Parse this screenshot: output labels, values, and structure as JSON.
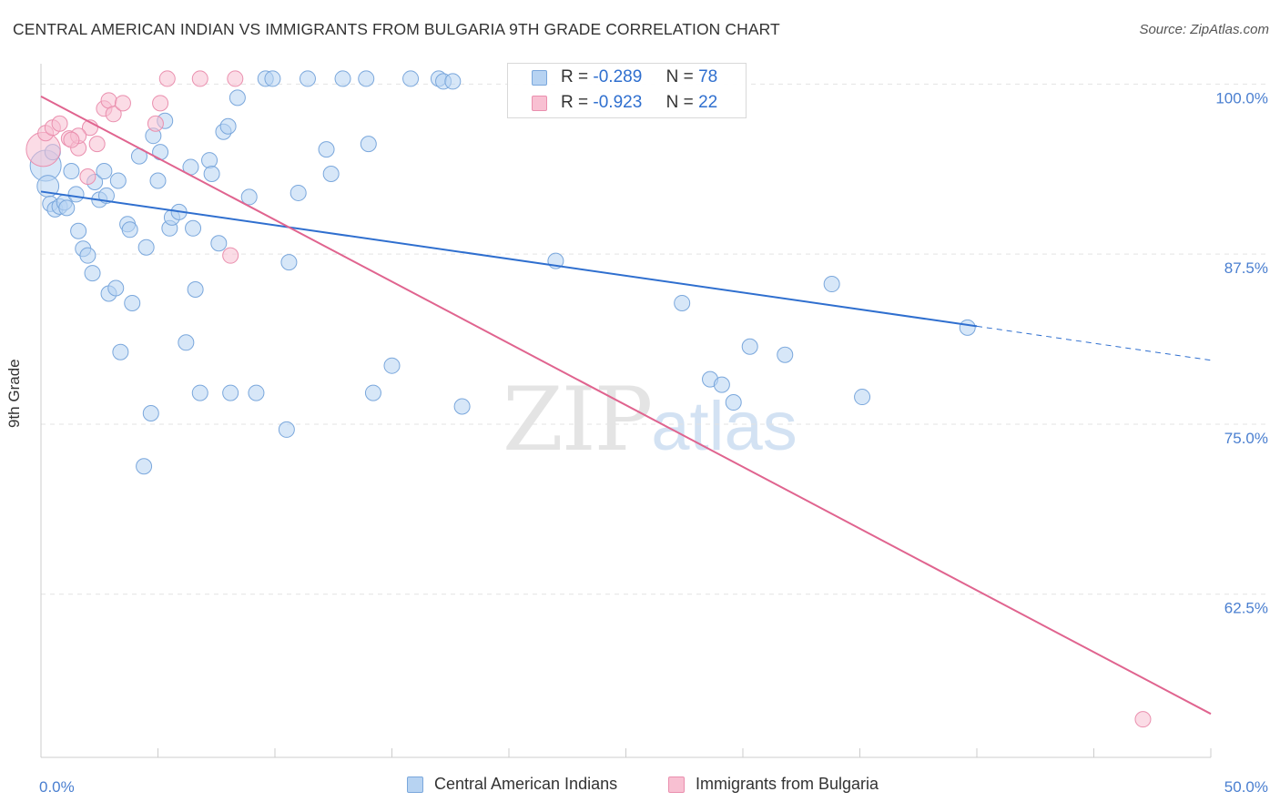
{
  "header": {
    "title": "CENTRAL AMERICAN INDIAN VS IMMIGRANTS FROM BULGARIA 9TH GRADE CORRELATION CHART",
    "source": "Source: ZipAtlas.com"
  },
  "watermark": {
    "zip": "ZIP",
    "atlas": "atlas"
  },
  "legend": {
    "series1": {
      "r_label": "R =",
      "r_value": "-0.289",
      "n_label": "N =",
      "n_value": "78"
    },
    "series2": {
      "r_label": "R =",
      "r_value": "-0.923",
      "n_label": "N =",
      "n_value": "22"
    }
  },
  "colors": {
    "blue_fill": "#b7d3f2",
    "blue_stroke": "#7aa7dc",
    "blue_line": "#2f6fcf",
    "pink_fill": "#f8c0d2",
    "pink_stroke": "#ea8fae",
    "pink_line": "#e0648f",
    "tick_text": "#4a7fd0",
    "grid": "#e3e3e3"
  },
  "chart_data": {
    "type": "scatter",
    "title": "CENTRAL AMERICAN INDIAN VS IMMIGRANTS FROM BULGARIA 9TH GRADE CORRELATION CHART",
    "xlabel": "",
    "ylabel": "9th Grade",
    "xlim": [
      0,
      50
    ],
    "ylim": [
      50.5,
      101.5
    ],
    "x_tick_labels": {
      "left": "0.0%",
      "right": "50.0%"
    },
    "x_minor_ticks": [
      5,
      10,
      15,
      20,
      25,
      30,
      35,
      40,
      45,
      50
    ],
    "y_ticks": [
      {
        "value": 100,
        "label": "100.0%"
      },
      {
        "value": 87.5,
        "label": "87.5%"
      },
      {
        "value": 75,
        "label": "75.0%"
      },
      {
        "value": 62.5,
        "label": "62.5%"
      }
    ],
    "grid": true,
    "series": [
      {
        "name": "Central American Indians",
        "color": "blue",
        "points": [
          [
            0.2,
            94.0,
            2
          ],
          [
            0.3,
            92.5,
            1.4
          ],
          [
            0.4,
            91.2,
            1
          ],
          [
            0.6,
            90.8,
            1
          ],
          [
            0.8,
            91.0,
            1
          ],
          [
            1.0,
            91.3,
            1
          ],
          [
            1.1,
            90.9,
            1
          ],
          [
            1.5,
            91.9,
            1
          ],
          [
            1.6,
            89.2,
            1
          ],
          [
            1.8,
            87.9,
            1
          ],
          [
            2.0,
            87.4,
            1
          ],
          [
            2.2,
            86.1,
            1
          ],
          [
            2.3,
            92.8,
            1
          ],
          [
            2.5,
            91.5,
            1
          ],
          [
            2.7,
            93.6,
            1
          ],
          [
            2.8,
            91.8,
            1
          ],
          [
            2.9,
            84.6,
            1
          ],
          [
            3.2,
            85.0,
            1
          ],
          [
            3.3,
            92.9,
            1
          ],
          [
            3.4,
            80.3,
            1
          ],
          [
            3.7,
            89.7,
            1
          ],
          [
            3.8,
            89.3,
            1
          ],
          [
            3.9,
            83.9,
            1
          ],
          [
            4.2,
            94.7,
            1
          ],
          [
            4.4,
            71.9,
            1
          ],
          [
            4.5,
            88.0,
            1
          ],
          [
            4.7,
            75.8,
            1
          ],
          [
            4.8,
            96.2,
            1
          ],
          [
            5.0,
            92.9,
            1
          ],
          [
            5.1,
            95.0,
            1
          ],
          [
            5.3,
            97.3,
            1
          ],
          [
            5.5,
            89.4,
            1
          ],
          [
            5.6,
            90.2,
            1
          ],
          [
            5.9,
            90.6,
            1
          ],
          [
            6.2,
            81.0,
            1
          ],
          [
            6.4,
            93.9,
            1
          ],
          [
            6.5,
            89.4,
            1
          ],
          [
            6.6,
            84.9,
            1
          ],
          [
            6.8,
            77.3,
            1
          ],
          [
            7.2,
            94.4,
            1
          ],
          [
            7.3,
            93.4,
            1
          ],
          [
            7.6,
            88.3,
            1
          ],
          [
            7.8,
            96.5,
            1
          ],
          [
            8.0,
            96.9,
            1
          ],
          [
            8.1,
            77.3,
            1
          ],
          [
            8.4,
            99.0,
            1
          ],
          [
            8.9,
            91.7,
            1
          ],
          [
            9.2,
            77.3,
            1
          ],
          [
            9.6,
            100.4,
            1
          ],
          [
            9.9,
            100.4,
            1
          ],
          [
            10.5,
            74.6,
            1
          ],
          [
            10.6,
            86.9,
            1
          ],
          [
            11.0,
            92.0,
            1
          ],
          [
            11.4,
            100.4,
            1
          ],
          [
            12.2,
            95.2,
            1
          ],
          [
            12.4,
            93.4,
            1
          ],
          [
            12.9,
            100.4,
            1
          ],
          [
            13.9,
            100.4,
            1
          ],
          [
            14.0,
            95.6,
            1
          ],
          [
            14.2,
            77.3,
            1
          ],
          [
            15.0,
            79.3,
            1
          ],
          [
            15.8,
            100.4,
            1
          ],
          [
            17.0,
            100.4,
            1
          ],
          [
            17.2,
            100.2,
            1
          ],
          [
            17.6,
            100.2,
            1
          ],
          [
            18.0,
            76.3,
            1
          ],
          [
            22.0,
            87.0,
            1
          ],
          [
            27.4,
            83.9,
            1
          ],
          [
            28.6,
            78.3,
            1
          ],
          [
            29.1,
            77.9,
            1
          ],
          [
            29.6,
            76.6,
            1
          ],
          [
            30.3,
            80.7,
            1
          ],
          [
            31.8,
            80.1,
            1
          ],
          [
            33.8,
            85.3,
            1
          ],
          [
            35.1,
            77.0,
            1
          ],
          [
            39.6,
            82.1,
            1
          ],
          [
            0.5,
            95.0,
            1
          ],
          [
            1.3,
            93.6,
            1
          ]
        ]
      },
      {
        "name": "Immigrants from Bulgaria",
        "color": "pink",
        "points": [
          [
            0.1,
            95.2,
            2.2
          ],
          [
            0.2,
            96.4,
            1
          ],
          [
            0.5,
            96.8,
            1
          ],
          [
            0.8,
            97.1,
            1
          ],
          [
            1.2,
            96.0,
            1
          ],
          [
            1.6,
            95.3,
            1
          ],
          [
            2.0,
            93.2,
            1
          ],
          [
            2.1,
            96.8,
            1
          ],
          [
            2.4,
            95.6,
            1
          ],
          [
            2.7,
            98.2,
            1
          ],
          [
            2.9,
            98.8,
            1
          ],
          [
            3.1,
            97.8,
            1
          ],
          [
            3.5,
            98.6,
            1
          ],
          [
            4.9,
            97.1,
            1
          ],
          [
            5.1,
            98.6,
            1
          ],
          [
            5.4,
            100.4,
            1
          ],
          [
            6.8,
            100.4,
            1
          ],
          [
            8.3,
            100.4,
            1
          ],
          [
            8.1,
            87.4,
            1
          ],
          [
            1.6,
            96.2,
            1
          ],
          [
            1.3,
            95.9,
            1
          ],
          [
            47.1,
            53.3,
            1
          ]
        ]
      }
    ],
    "trendlines": [
      {
        "series": "Central American Indians",
        "from": [
          0,
          92.1
        ],
        "to": [
          40.0,
          82.2
        ],
        "dashed_to": [
          50.0,
          79.7
        ]
      },
      {
        "series": "Immigrants from Bulgaria",
        "from": [
          0,
          99.1
        ],
        "to": [
          50.0,
          53.7
        ]
      }
    ]
  }
}
